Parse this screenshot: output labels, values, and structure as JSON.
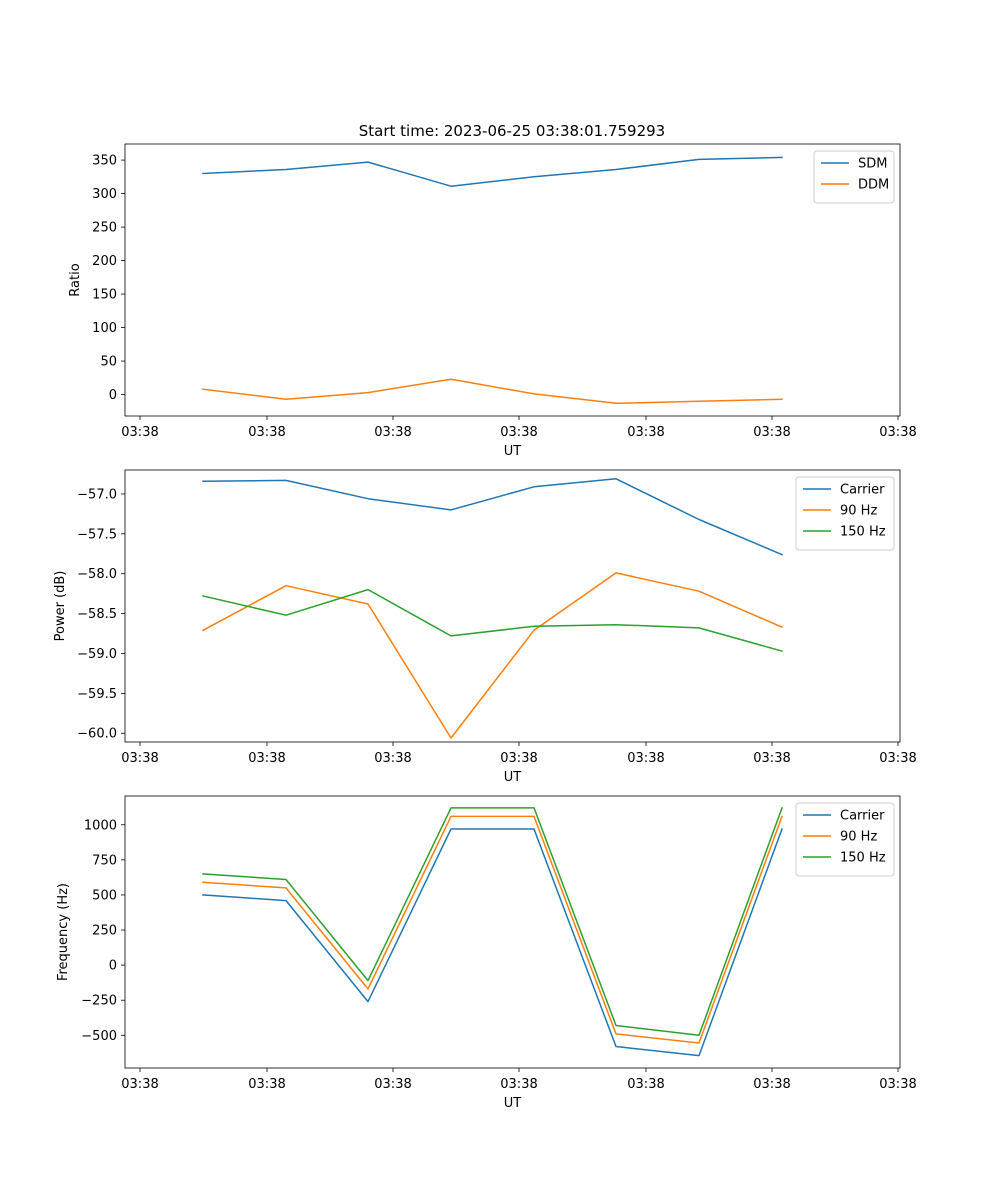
{
  "figure_title": "Start time: 2023-06-25 03:38:01.759293",
  "chart_data": [
    {
      "type": "line",
      "title": "Start time: 2023-06-25 03:38:01.759293",
      "xlabel": "UT",
      "ylabel": "Ratio",
      "x_tick_labels": [
        "03:38",
        "03:38",
        "03:38",
        "03:38",
        "03:38",
        "03:38",
        "03:38"
      ],
      "ylim": [
        -32,
        374
      ],
      "y_ticks": [
        0,
        50,
        100,
        150,
        200,
        250,
        300,
        350
      ],
      "legend_position": "upper-right",
      "grid": false,
      "series": [
        {
          "name": "SDM",
          "color": "#1f77b4",
          "values": [
            330,
            336,
            347,
            311,
            325,
            336,
            351,
            354
          ]
        },
        {
          "name": "DDM",
          "color": "#ff7f0e",
          "values": [
            8,
            -7,
            3,
            23,
            1,
            -13,
            -10,
            -7
          ]
        }
      ]
    },
    {
      "type": "line",
      "title": "",
      "xlabel": "UT",
      "ylabel": "Power (dB)",
      "x_tick_labels": [
        "03:38",
        "03:38",
        "03:38",
        "03:38",
        "03:38",
        "03:38",
        "03:38"
      ],
      "ylim": [
        -60.11,
        -56.7
      ],
      "y_ticks": [
        -60.0,
        -59.5,
        -59.0,
        -58.5,
        -58.0,
        -57.5,
        -57.0
      ],
      "y_tick_labels": [
        "−60.0",
        "−59.5",
        "−59.0",
        "−58.5",
        "−58.0",
        "−57.5",
        "−57.0"
      ],
      "legend_position": "upper-right",
      "grid": false,
      "series": [
        {
          "name": "Carrier",
          "color": "#1f77b4",
          "values": [
            -56.84,
            -56.83,
            -57.06,
            -57.2,
            -56.91,
            -56.81,
            -57.32,
            -57.76
          ]
        },
        {
          "name": "90 Hz",
          "color": "#ff7f0e",
          "values": [
            -58.71,
            -58.15,
            -58.38,
            -60.06,
            -58.71,
            -57.99,
            -58.22,
            -58.67
          ]
        },
        {
          "name": "150 Hz",
          "color": "#2ca02c",
          "values": [
            -58.28,
            -58.52,
            -58.2,
            -58.78,
            -58.66,
            -58.64,
            -58.68,
            -58.97
          ]
        }
      ]
    },
    {
      "type": "line",
      "title": "",
      "xlabel": "UT",
      "ylabel": "Frequency (Hz)",
      "x_tick_labels": [
        "03:38",
        "03:38",
        "03:38",
        "03:38",
        "03:38",
        "03:38",
        "03:38"
      ],
      "ylim": [
        -733,
        1205
      ],
      "y_ticks": [
        -500,
        -250,
        0,
        250,
        500,
        750,
        1000
      ],
      "y_tick_labels": [
        "−500",
        "−250",
        "0",
        "250",
        "500",
        "750",
        "1000"
      ],
      "legend_position": "upper-right",
      "grid": false,
      "series": [
        {
          "name": "Carrier",
          "color": "#1f77b4",
          "values": [
            500,
            460,
            -260,
            970,
            970,
            -580,
            -645,
            970
          ]
        },
        {
          "name": "90 Hz",
          "color": "#ff7f0e",
          "values": [
            590,
            550,
            -170,
            1060,
            1060,
            -490,
            -555,
            1060
          ]
        },
        {
          "name": "150 Hz",
          "color": "#2ca02c",
          "values": [
            650,
            610,
            -110,
            1120,
            1120,
            -430,
            -500,
            1120
          ]
        }
      ]
    }
  ]
}
